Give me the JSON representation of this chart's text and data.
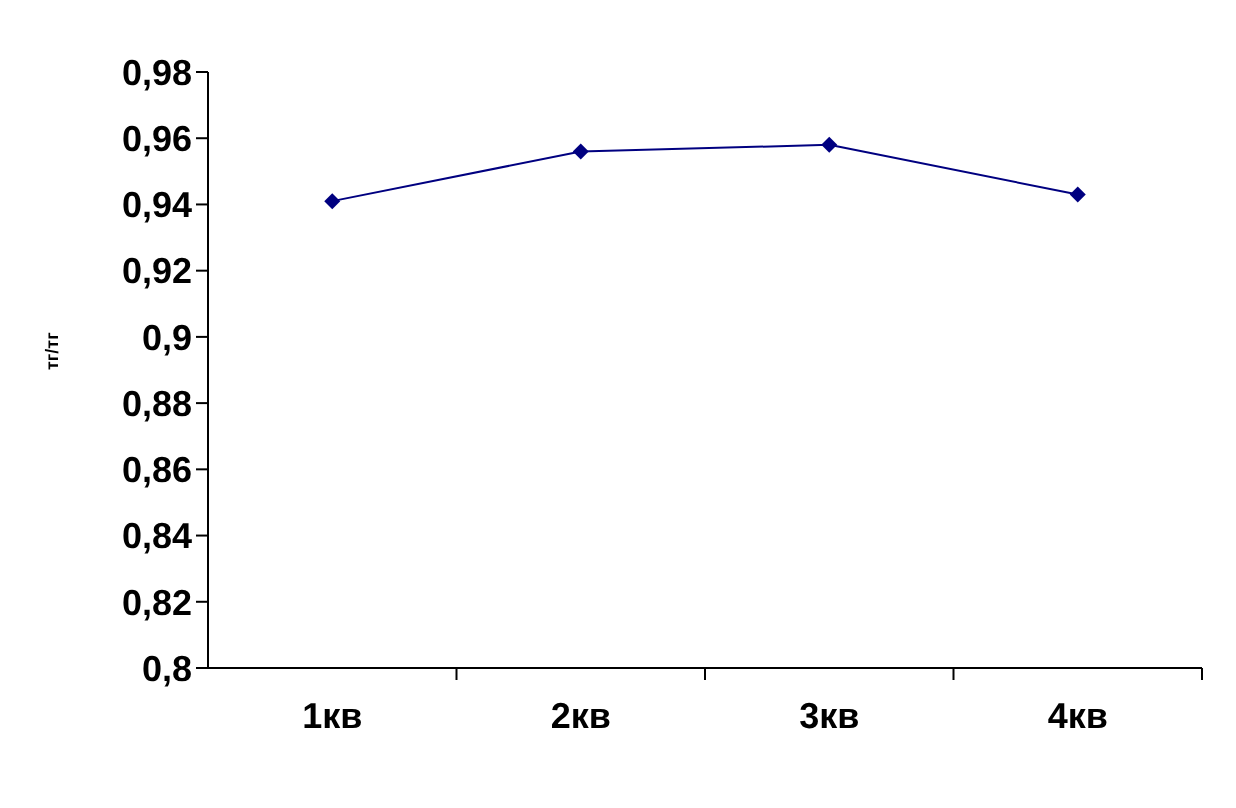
{
  "chart_data": {
    "type": "line",
    "ylabel": "тг/тг",
    "categories": [
      "1кв",
      "2кв",
      "3кв",
      "4кв"
    ],
    "series": [
      {
        "color": "#000080",
        "values": [
          0.941,
          0.956,
          0.958,
          0.943
        ]
      }
    ],
    "ylim": [
      0.8,
      0.98
    ],
    "yticks": [
      {
        "value": 0.8,
        "label": "0,8"
      },
      {
        "value": 0.82,
        "label": "0,82"
      },
      {
        "value": 0.84,
        "label": "0,84"
      },
      {
        "value": 0.86,
        "label": "0,86"
      },
      {
        "value": 0.88,
        "label": "0,88"
      },
      {
        "value": 0.9,
        "label": "0,9"
      },
      {
        "value": 0.92,
        "label": "0,92"
      },
      {
        "value": 0.94,
        "label": "0,94"
      },
      {
        "value": 0.96,
        "label": "0,96"
      },
      {
        "value": 0.98,
        "label": "0,98"
      }
    ],
    "marker": "diamond",
    "line_style": "solid",
    "grid": false,
    "legend": false
  }
}
